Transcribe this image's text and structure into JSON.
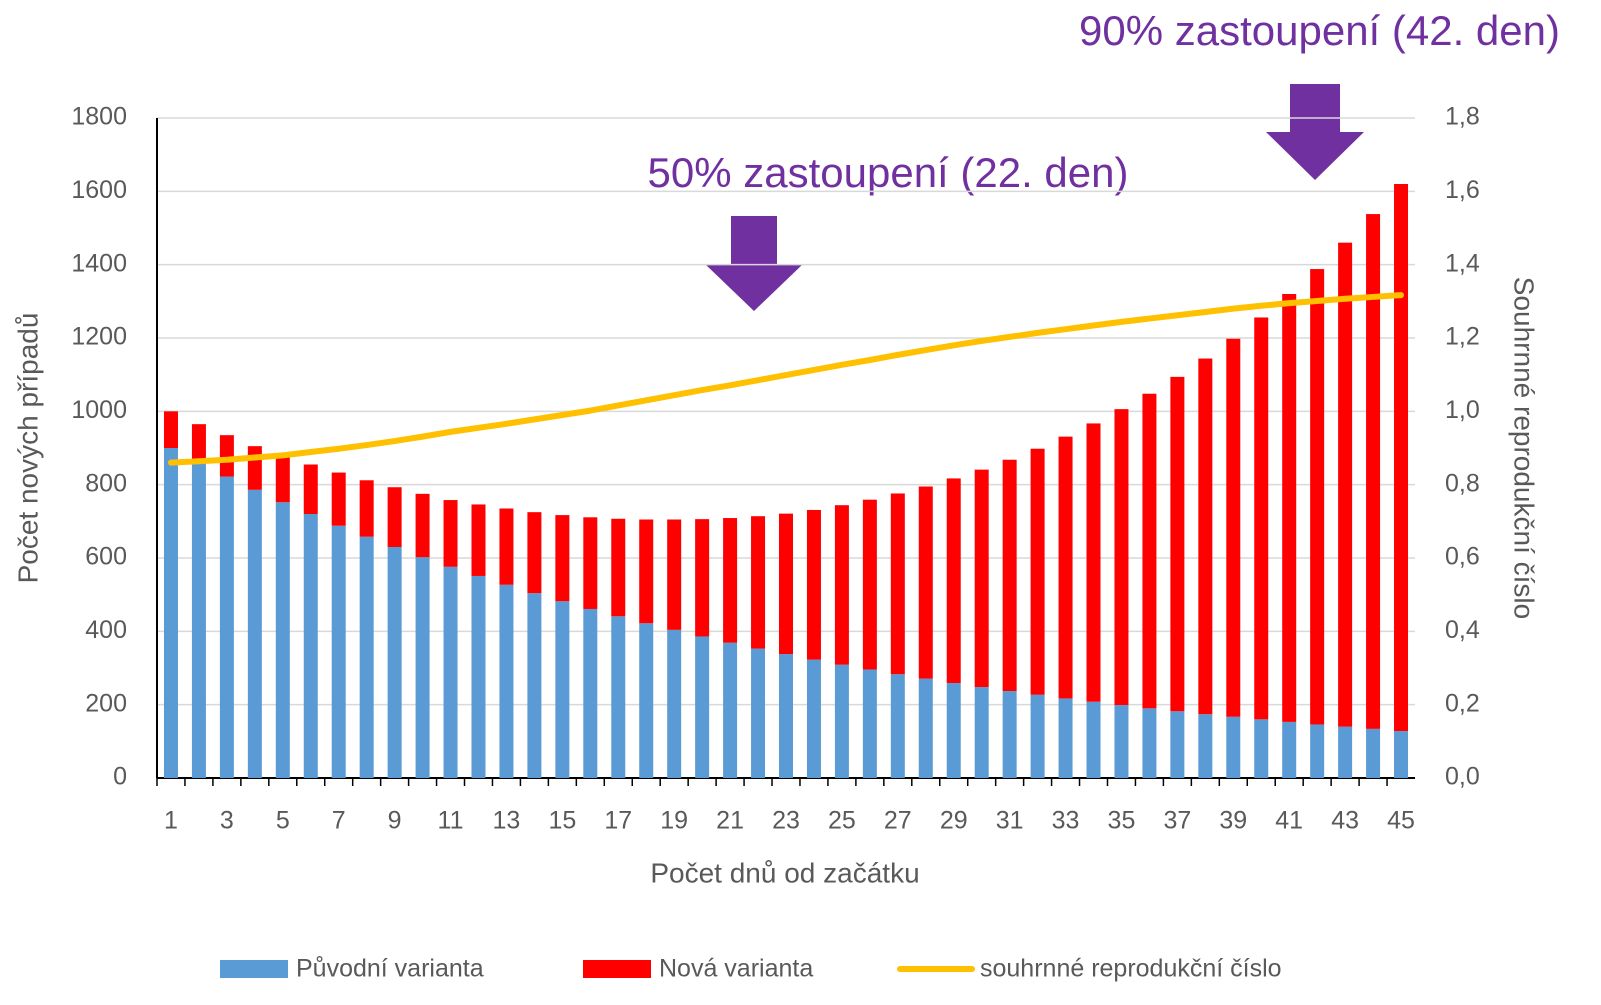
{
  "chart_data": {
    "type": "bar",
    "stacked": true,
    "x_label": "Počet dnů od začátku",
    "y_label": "Počet nových případů",
    "y2_label": "Souhrnné reprodukční číslo",
    "annotations": [
      "50% zastoupení (22. den)",
      "90% zastoupení (42. den)"
    ],
    "categories": [
      "1",
      null,
      "3",
      null,
      "5",
      null,
      "7",
      null,
      "9",
      null,
      "11",
      null,
      "13",
      null,
      "15",
      null,
      "17",
      null,
      "19",
      null,
      "21",
      null,
      "23",
      null,
      "25",
      null,
      "27",
      null,
      "29",
      null,
      "31",
      null,
      "33",
      null,
      "35",
      null,
      "37",
      null,
      "39",
      null,
      "41",
      null,
      "43",
      null,
      "45"
    ],
    "series": [
      {
        "name": "Původní varianta",
        "color": "#5b9bd5",
        "values": [
          900,
          860,
          822,
          786,
          752,
          720,
          688,
          658,
          630,
          602,
          576,
          551,
          527,
          504,
          482,
          461,
          441,
          422,
          404,
          386,
          369,
          353,
          338,
          323,
          309,
          296,
          283,
          271,
          259,
          248,
          237,
          227,
          217,
          208,
          199,
          190,
          182,
          174,
          167,
          160,
          153,
          146,
          140,
          134,
          128
        ]
      },
      {
        "name": "Nová varianta",
        "color": "#ff0000",
        "values": [
          100,
          105,
          113,
          119,
          128,
          135,
          145,
          154,
          163,
          173,
          182,
          195,
          208,
          221,
          235,
          250,
          266,
          283,
          301,
          320,
          340,
          361,
          383,
          408,
          435,
          463,
          493,
          524,
          558,
          593,
          631,
          671,
          714,
          759,
          807,
          858,
          912,
          970,
          1031,
          1096,
          1167,
          1242,
          1320,
          1404,
          1492
        ]
      },
      {
        "name": "souhrnné reprodukční číslo",
        "color": "#ffc000",
        "type": "line",
        "axis": "y2",
        "values": [
          0.86,
          0.864,
          0.868,
          0.874,
          0.88,
          0.889,
          0.898,
          0.908,
          0.919,
          0.931,
          0.944,
          0.955,
          0.966,
          0.978,
          0.99,
          1.002,
          1.016,
          1.03,
          1.044,
          1.058,
          1.071,
          1.085,
          1.099,
          1.113,
          1.127,
          1.14,
          1.154,
          1.167,
          1.18,
          1.192,
          1.203,
          1.214,
          1.224,
          1.234,
          1.244,
          1.253,
          1.262,
          1.271,
          1.28,
          1.288,
          1.295,
          1.301,
          1.307,
          1.312,
          1.317
        ]
      }
    ],
    "ylim": [
      0,
      1800
    ],
    "yticks": [
      0,
      200,
      400,
      600,
      800,
      1000,
      1200,
      1400,
      1600,
      1800
    ],
    "y2lim": [
      0,
      1.8
    ],
    "y2ticks": [
      {
        "value": 0,
        "label": "0,0"
      },
      {
        "value": 0.2,
        "label": "0,2"
      },
      {
        "value": 0.4,
        "label": "0,4"
      },
      {
        "value": 0.6,
        "label": "0,6"
      },
      {
        "value": 0.8,
        "label": "0,8"
      },
      {
        "value": 1.0,
        "label": "1,0"
      },
      {
        "value": 1.2,
        "label": "1,2"
      },
      {
        "value": 1.4,
        "label": "1,4"
      },
      {
        "value": 1.6,
        "label": "1,6"
      },
      {
        "value": 1.8,
        "label": "1,8"
      }
    ],
    "grid": true,
    "legend": "bottom"
  }
}
